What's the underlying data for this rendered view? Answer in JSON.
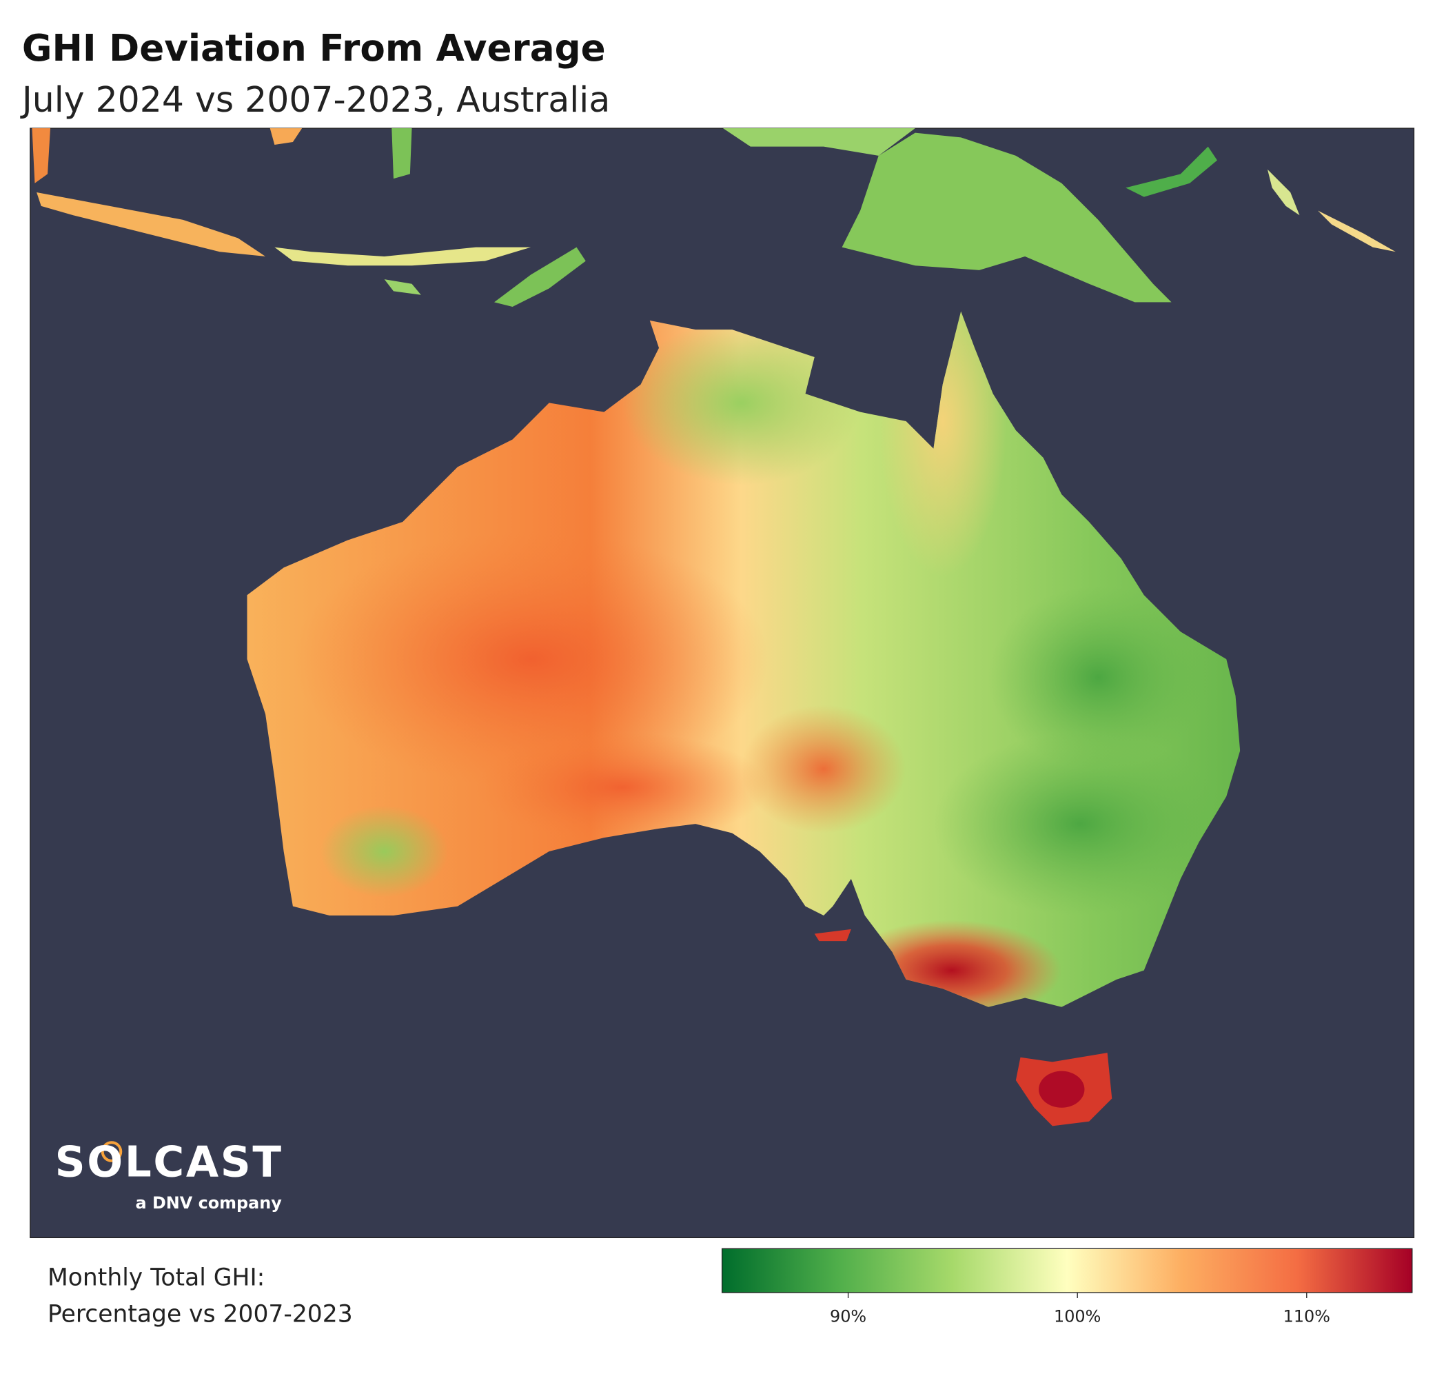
{
  "header": {
    "title": "GHI Deviation From Average",
    "subtitle": "July 2024 vs 2007-2023, Australia"
  },
  "logo": {
    "name": "SOLCAST",
    "tagline": "a DNV company"
  },
  "legend": {
    "label": [
      "Monthly Total GHI:",
      "Percentage vs 2007-2023"
    ],
    "colorbar": {
      "range": [
        84.5,
        114.6
      ],
      "colors": [
        "#006d2c",
        "#4fae4a",
        "#a6d96a",
        "#ffffbf",
        "#fdae61",
        "#f46d43",
        "#a50026"
      ],
      "ticks": [
        {
          "value": 90,
          "label": "90%"
        },
        {
          "value": 100,
          "label": "100%"
        },
        {
          "value": 110,
          "label": "110%"
        }
      ]
    }
  }
}
